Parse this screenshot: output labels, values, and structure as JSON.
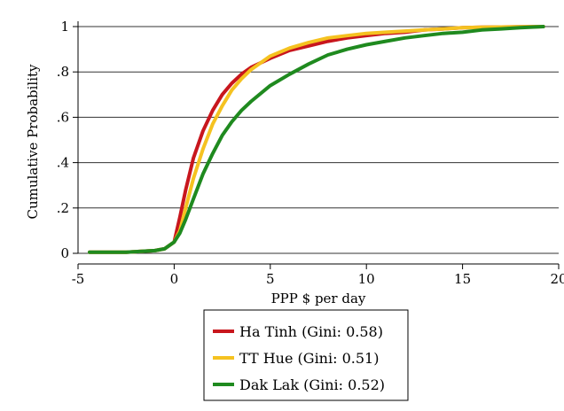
{
  "chart_data": {
    "type": "line",
    "title": "",
    "xlabel": "PPP $ per day",
    "ylabel": "Cumulative Probability",
    "xlim": [
      -5,
      20
    ],
    "ylim": [
      0,
      1
    ],
    "x_ticks": [
      -5,
      0,
      5,
      10,
      15,
      20
    ],
    "x_tick_labels": [
      "-5",
      "0",
      "5",
      "10",
      "15",
      "20"
    ],
    "y_ticks": [
      0,
      0.2,
      0.4,
      0.6,
      0.8,
      1
    ],
    "y_tick_labels": [
      "0",
      ".2",
      ".4",
      ".6",
      ".8",
      "1"
    ],
    "grid": "horizontal",
    "legend_position": "bottom",
    "series": [
      {
        "name": "Ha Tinh (Gini: 0.58)",
        "color": "#c8161d",
        "x": [
          -4.4,
          -2.5,
          -1.0,
          -0.5,
          0,
          0.3,
          0.6,
          1.0,
          1.5,
          2.0,
          2.5,
          3.0,
          3.5,
          4.0,
          5.0,
          6.0,
          7.0,
          8.0,
          9.0,
          10.0,
          11.0,
          12.0,
          13.0,
          14.0,
          15.0,
          16.0,
          17.0,
          18.0,
          19.2
        ],
        "y": [
          0.005,
          0.005,
          0.012,
          0.02,
          0.05,
          0.16,
          0.28,
          0.42,
          0.54,
          0.63,
          0.7,
          0.75,
          0.79,
          0.82,
          0.86,
          0.895,
          0.915,
          0.935,
          0.95,
          0.96,
          0.97,
          0.975,
          0.985,
          0.99,
          0.995,
          0.997,
          0.998,
          0.999,
          1.0
        ]
      },
      {
        "name": "TT Hue (Gini: 0.51)",
        "color": "#f5c220",
        "x": [
          -4.4,
          -2.5,
          -1.0,
          -0.5,
          0,
          0.3,
          0.6,
          1.0,
          1.5,
          2.0,
          2.5,
          3.0,
          3.5,
          4.0,
          5.0,
          6.0,
          7.0,
          8.0,
          9.0,
          10.0,
          11.0,
          12.0,
          13.0,
          14.0,
          15.0,
          16.0,
          17.0,
          18.0,
          19.2
        ],
        "y": [
          0.005,
          0.005,
          0.012,
          0.02,
          0.05,
          0.1,
          0.2,
          0.33,
          0.46,
          0.57,
          0.65,
          0.72,
          0.77,
          0.81,
          0.87,
          0.905,
          0.93,
          0.95,
          0.96,
          0.97,
          0.975,
          0.98,
          0.985,
          0.99,
          0.995,
          0.997,
          0.998,
          0.999,
          1.0
        ]
      },
      {
        "name": "Dak Lak (Gini: 0.52)",
        "color": "#1f8a1f",
        "x": [
          -4.4,
          -2.5,
          -1.0,
          -0.5,
          0,
          0.3,
          0.6,
          1.0,
          1.5,
          2.0,
          2.5,
          3.0,
          3.5,
          4.0,
          5.0,
          6.0,
          7.0,
          8.0,
          9.0,
          10.0,
          11.0,
          12.0,
          13.0,
          14.0,
          15.0,
          16.0,
          17.0,
          18.0,
          19.2
        ],
        "y": [
          0.005,
          0.005,
          0.012,
          0.02,
          0.05,
          0.09,
          0.15,
          0.24,
          0.35,
          0.44,
          0.52,
          0.58,
          0.63,
          0.67,
          0.74,
          0.79,
          0.835,
          0.875,
          0.9,
          0.92,
          0.935,
          0.95,
          0.96,
          0.97,
          0.975,
          0.985,
          0.99,
          0.995,
          1.0
        ]
      }
    ]
  }
}
